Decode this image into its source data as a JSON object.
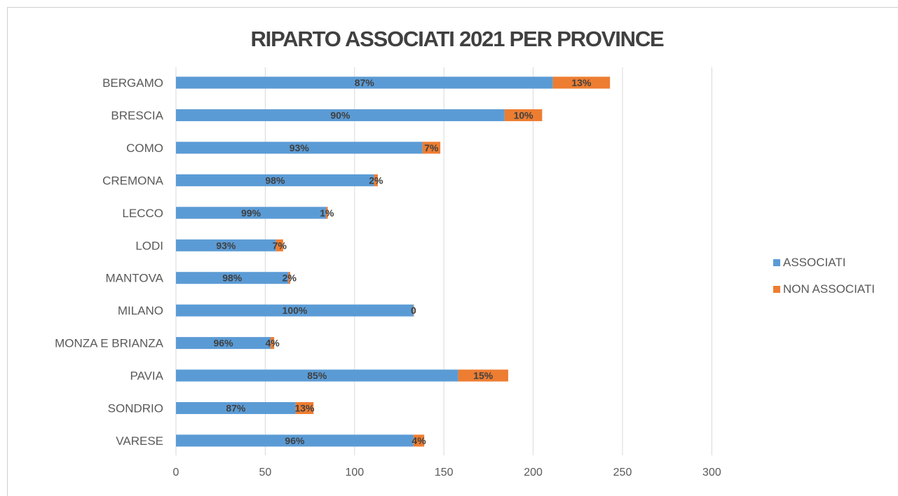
{
  "chart_data": {
    "type": "bar",
    "orientation": "horizontal",
    "stacked": true,
    "title": "RIPARTO ASSOCIATI 2021 PER PROVINCE",
    "categories": [
      "BERGAMO",
      "BRESCIA",
      "COMO",
      "CREMONA",
      "LECCO",
      "LODI",
      "MANTOVA",
      "MILANO",
      "MONZA E BRIANZA",
      "PAVIA",
      "SONDRIO",
      "VARESE"
    ],
    "series": [
      {
        "name": "ASSOCIATI",
        "color": "#5b9bd5",
        "values": [
          211,
          184,
          138,
          111,
          84,
          56,
          63,
          133,
          53,
          158,
          67,
          133
        ],
        "labels": [
          "87%",
          "90%",
          "93%",
          "98%",
          "99%",
          "93%",
          "98%",
          "100%",
          "96%",
          "85%",
          "87%",
          "96%"
        ]
      },
      {
        "name": "NON ASSOCIATI",
        "color": "#ed7d31",
        "values": [
          32,
          21,
          10,
          2,
          1,
          4,
          1,
          0,
          2,
          28,
          10,
          6
        ],
        "labels": [
          "13%",
          "10%",
          "7%",
          "2%",
          "1%",
          "7%",
          "2%",
          "0",
          "4%",
          "15%",
          "13%",
          "4%"
        ]
      }
    ],
    "xlim": [
      0,
      300
    ],
    "xticks": [
      "0",
      "50",
      "100",
      "150",
      "200",
      "250",
      "300"
    ],
    "grid": true,
    "legend_position": "right"
  }
}
